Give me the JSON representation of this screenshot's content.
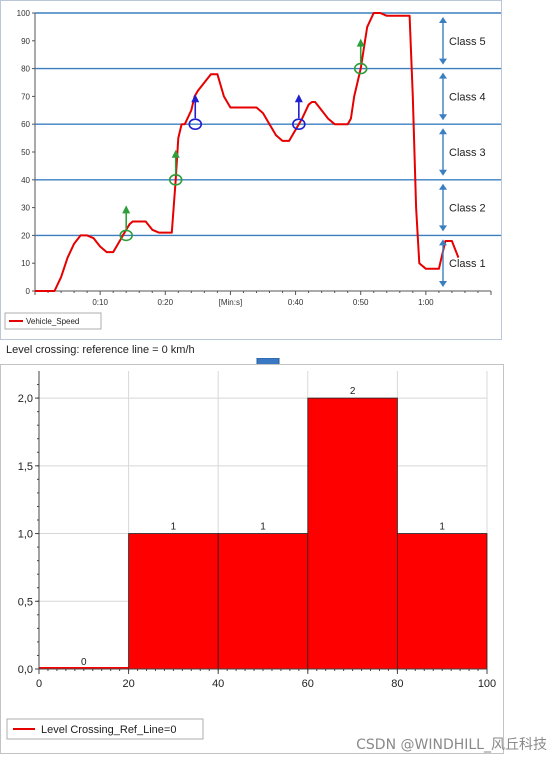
{
  "caption": "Level crossing: reference line = 0 km/h",
  "watermark": "CSDN @WINDHILL_风丘科技",
  "colors": {
    "series": "#e60000",
    "classLine": "#3c7fc0",
    "arrowDown": "#3a78c4",
    "greenMarker": "#2e9e3a",
    "blueMarker": "#1f1fd0"
  },
  "chart_data": [
    {
      "type": "line",
      "title": "",
      "xlabel": "[Min:s]",
      "ylabel": "",
      "legend": {
        "label": "Vehicle_Speed",
        "position": "bottom-left"
      },
      "xlim": [
        0,
        70
      ],
      "ylim": [
        0,
        100
      ],
      "x_ticks": [
        {
          "v": 10,
          "label": "0:10"
        },
        {
          "v": 20,
          "label": "0:20"
        },
        {
          "v": 40,
          "label": "0:40"
        },
        {
          "v": 50,
          "label": "0:50"
        },
        {
          "v": 60,
          "label": "1:00"
        }
      ],
      "x_unit_label": {
        "v": 30,
        "label": "[Min:s]"
      },
      "y_ticks": [
        0,
        10,
        20,
        30,
        40,
        50,
        60,
        70,
        80,
        90,
        100
      ],
      "class_lines": [
        20,
        40,
        60,
        80,
        100
      ],
      "classes": [
        {
          "label": "Class 1",
          "from": 0,
          "to": 20
        },
        {
          "label": "Class 2",
          "from": 20,
          "to": 40
        },
        {
          "label": "Class 3",
          "from": 40,
          "to": 60
        },
        {
          "label": "Class 4",
          "from": 60,
          "to": 80
        },
        {
          "label": "Class 5",
          "from": 80,
          "to": 100
        }
      ],
      "series": [
        {
          "name": "Vehicle_Speed",
          "x": [
            0,
            3,
            4,
            5,
            6,
            7,
            8,
            9,
            10,
            11,
            12,
            13,
            13.5,
            14,
            14.5,
            15,
            17,
            18,
            19,
            19.5,
            20,
            21,
            21.6,
            22,
            22.5,
            23,
            24,
            24.5,
            25,
            26,
            27,
            28,
            29,
            30,
            31,
            32,
            33,
            34,
            35,
            36,
            37,
            38,
            39,
            40,
            40.5,
            41,
            42,
            42.5,
            43,
            44,
            45,
            46,
            47,
            48,
            48.5,
            49,
            50,
            51,
            52,
            53,
            54,
            56,
            57.5,
            58,
            58.5,
            59,
            60,
            61,
            62,
            63,
            64,
            65
          ],
          "y": [
            0,
            0,
            5,
            12,
            17,
            20,
            20,
            19,
            16,
            14,
            14,
            18,
            20,
            22,
            24,
            25,
            25,
            22,
            21,
            21,
            21,
            21,
            40,
            55,
            60,
            60,
            65,
            70,
            72,
            75,
            78,
            78,
            70,
            66,
            66,
            66,
            66,
            66,
            64,
            60,
            56,
            54,
            54,
            58,
            60,
            62,
            67,
            68,
            68,
            65,
            62,
            60,
            60,
            60,
            62,
            70,
            80,
            95,
            100,
            100,
            99,
            99,
            99,
            70,
            30,
            10,
            8,
            8,
            8,
            18,
            18,
            12
          ]
        }
      ],
      "crossings": [
        {
          "x": 14,
          "y": 20,
          "marker": "green"
        },
        {
          "x": 21.6,
          "y": 40,
          "marker": "green"
        },
        {
          "x": 24.6,
          "y": 60,
          "marker": "blue"
        },
        {
          "x": 40.5,
          "y": 60,
          "marker": "blue"
        },
        {
          "x": 50,
          "y": 80,
          "marker": "green"
        }
      ]
    },
    {
      "type": "bar",
      "title": "",
      "xlabel": "",
      "ylabel": "",
      "legend": {
        "label": "Level Crossing_Ref_Line=0",
        "position": "bottom-left"
      },
      "xlim": [
        0,
        100
      ],
      "ylim": [
        0,
        2.2
      ],
      "x_ticks": [
        0,
        20,
        40,
        60,
        80,
        100
      ],
      "y_ticks": [
        {
          "v": 0,
          "label": "0,0"
        },
        {
          "v": 0.5,
          "label": "0,5"
        },
        {
          "v": 1.0,
          "label": "1,0"
        },
        {
          "v": 1.5,
          "label": "1,5"
        },
        {
          "v": 2.0,
          "label": "2,0"
        }
      ],
      "bins": [
        {
          "from": 0,
          "to": 20,
          "value": 0,
          "label": "0"
        },
        {
          "from": 20,
          "to": 40,
          "value": 1,
          "label": "1"
        },
        {
          "from": 40,
          "to": 60,
          "value": 1,
          "label": "1"
        },
        {
          "from": 60,
          "to": 80,
          "value": 2,
          "label": "2"
        },
        {
          "from": 80,
          "to": 100,
          "value": 1,
          "label": "1"
        }
      ]
    }
  ]
}
